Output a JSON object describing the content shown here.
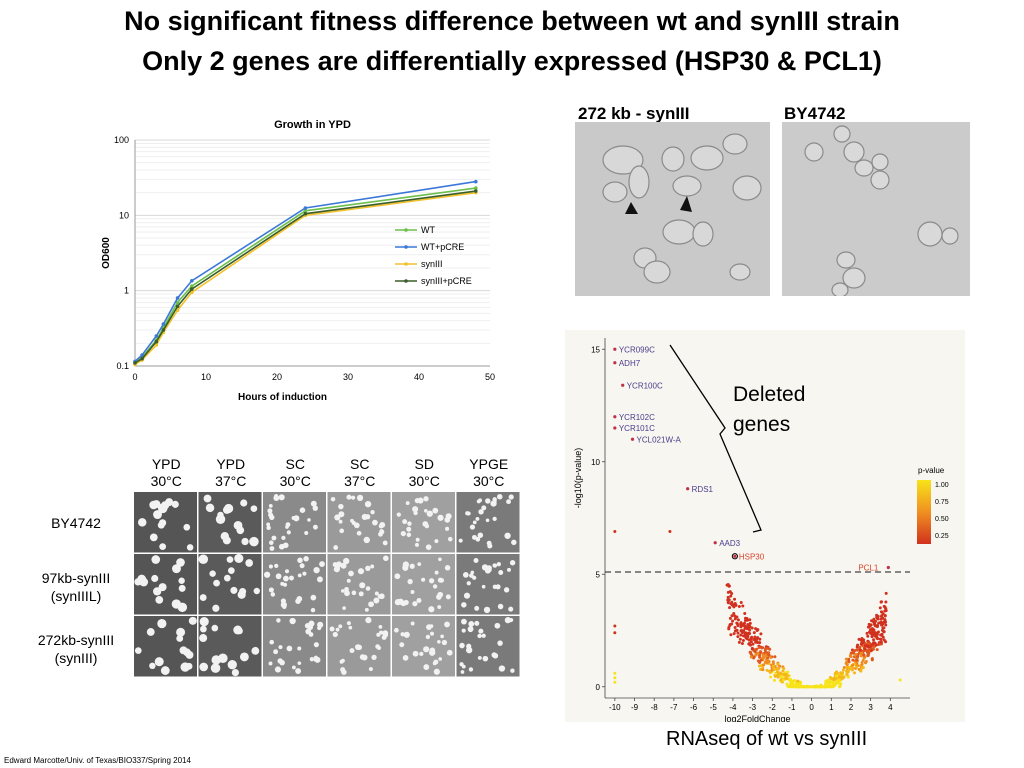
{
  "slide": {
    "title_line1": "No significant fitness difference between wt and synIII strain",
    "title_line2": "Only 2 genes are differentially expressed (HSP30 & PCL1)",
    "footer": "Edward Marcotte/Univ. of Texas/BIO337/Spring 2014",
    "rnaseq_caption": "RNAseq of wt vs synIII",
    "deleted_label_1": "Deleted",
    "deleted_label_2": "genes"
  },
  "micrographs": {
    "left_label": "272 kb - synIII",
    "right_label": "BY4742"
  },
  "plates": {
    "columns": [
      {
        "line1": "YPD",
        "line2": "30°C"
      },
      {
        "line1": "YPD",
        "line2": "37°C"
      },
      {
        "line1": "SC",
        "line2": "30°C"
      },
      {
        "line1": "SC",
        "line2": "37°C"
      },
      {
        "line1": "SD",
        "line2": "30°C"
      },
      {
        "line1": "YPGE",
        "line2": "30°C"
      }
    ],
    "rows": [
      {
        "line1": "BY4742",
        "line2": ""
      },
      {
        "line1": "97kb-synIII",
        "line2": "(synIIIL)"
      },
      {
        "line1": "272kb-synIII",
        "line2": "(synIII)"
      }
    ]
  },
  "chart_data": [
    {
      "type": "line",
      "title": "Growth in YPD",
      "xlabel": "Hours of induction",
      "ylabel": "OD600",
      "xlim": [
        0,
        50
      ],
      "ylim": [
        0.1,
        100
      ],
      "yscale": "log",
      "xticks": [
        0,
        10,
        20,
        30,
        40,
        50
      ],
      "yticks": [
        0.1,
        1,
        10,
        100
      ],
      "ytick_labels": [
        "0.1",
        "1",
        "10",
        "100"
      ],
      "legend_position": "right",
      "x": [
        0,
        1,
        3,
        4,
        6,
        8,
        24,
        48
      ],
      "series": [
        {
          "name": "WT",
          "color": "#6cbf4a",
          "values": [
            0.11,
            0.13,
            0.22,
            0.32,
            0.7,
            1.15,
            11.5,
            23
          ]
        },
        {
          "name": "WT+pCRE",
          "color": "#3c78d8",
          "values": [
            0.115,
            0.14,
            0.25,
            0.36,
            0.8,
            1.35,
            12.5,
            28
          ]
        },
        {
          "name": "synIII",
          "color": "#f2c12e",
          "values": [
            0.105,
            0.12,
            0.19,
            0.28,
            0.55,
            0.95,
            10,
            20
          ]
        },
        {
          "name": "synIII+pCRE",
          "color": "#3a5e2a",
          "values": [
            0.11,
            0.125,
            0.21,
            0.3,
            0.62,
            1.05,
            10.5,
            21
          ]
        }
      ]
    },
    {
      "type": "scatter",
      "title": "",
      "xlabel": "log2FoldChange",
      "ylabel": "-log10(p-value)",
      "xlim": [
        -10.5,
        5
      ],
      "ylim": [
        -0.5,
        15.5
      ],
      "xticks": [
        -10,
        -9,
        -8,
        -7,
        -6,
        -5,
        -4,
        -3,
        -2,
        -1,
        0,
        1,
        2,
        3,
        4
      ],
      "yticks": [
        0,
        5,
        10,
        15
      ],
      "threshold": 5.1,
      "legend": {
        "title": "p-value",
        "ticks": [
          "1.00",
          "0.75",
          "0.50",
          "0.25"
        ],
        "position": "right"
      },
      "labeled_points": [
        {
          "label": "YCR099C",
          "x": -10,
          "y": 15.0,
          "color": "#4a3c8c"
        },
        {
          "label": "ADH7",
          "x": -10,
          "y": 14.4,
          "color": "#4a3c8c"
        },
        {
          "label": "YCR100C",
          "x": -9.6,
          "y": 13.4,
          "color": "#4a3c8c"
        },
        {
          "label": "YCR102C",
          "x": -10,
          "y": 12.0,
          "color": "#4a3c8c"
        },
        {
          "label": "YCR101C",
          "x": -10,
          "y": 11.5,
          "color": "#4a3c8c"
        },
        {
          "label": "YCL021W-A",
          "x": -9.1,
          "y": 11.0,
          "color": "#4a3c8c"
        },
        {
          "label": "RDS1",
          "x": -6.3,
          "y": 8.8,
          "color": "#4a3c8c"
        },
        {
          "label": "AAD3",
          "x": -4.9,
          "y": 6.4,
          "color": "#4a3c8c"
        },
        {
          "label": "HSP30",
          "x": -3.9,
          "y": 5.8,
          "color": "#d9442b"
        },
        {
          "label": "PCL1",
          "x": 3.9,
          "y": 5.3,
          "color": "#d9442b"
        }
      ]
    }
  ]
}
